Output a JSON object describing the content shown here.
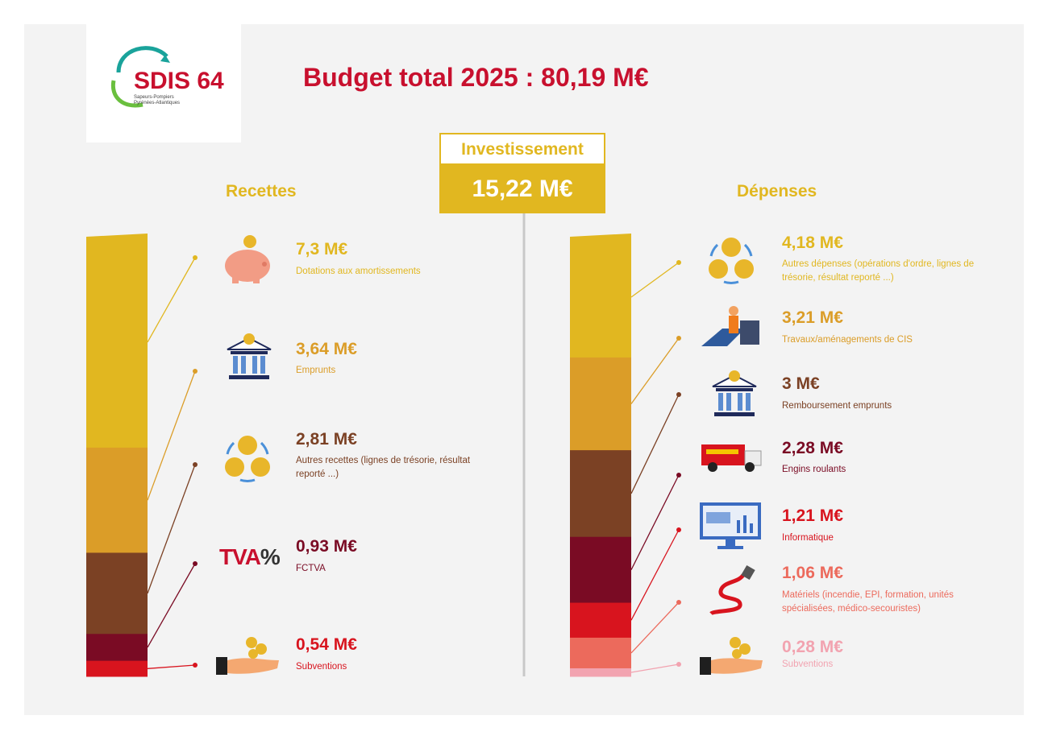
{
  "logo": {
    "text": "SDIS 64",
    "tagline_1": "Sapeurs-Pompiers",
    "tagline_2": "Pyrénées-Atlantiques"
  },
  "title": "Budget total 2025 : 80,19 M€",
  "section": {
    "label": "Investissement",
    "value": "15,22 M€"
  },
  "chart_data": [
    {
      "type": "bar",
      "stacked": true,
      "title": "Recettes",
      "unit": "M€",
      "categories": [
        "Dotations aux amortissements",
        "Emprunts",
        "Autres recettes (lignes de trésorie, résultat reporté ...)",
        "FCTVA",
        "Subventions"
      ],
      "values": [
        7.3,
        3.64,
        2.81,
        0.93,
        0.54
      ],
      "value_labels": [
        "7,3 M€",
        "3,64 M€",
        "2,81 M€",
        "0,93 M€",
        "0,54 M€"
      ],
      "colors": [
        "#e1b720",
        "#db9d28",
        "#7b4124",
        "#7a0b24",
        "#d8141e"
      ],
      "icons": [
        "piggy-bank-icon",
        "bank-icon",
        "coins-cycle-icon",
        "tva-icon",
        "hand-coins-icon"
      ]
    },
    {
      "type": "bar",
      "stacked": true,
      "title": "Dépenses",
      "unit": "M€",
      "categories": [
        "Autres dépenses (opérations d'ordre, lignes de trésorie, résultat reporté ...)",
        "Travaux/aménagements de CIS",
        "Remboursement emprunts",
        "Engins roulants",
        "Informatique",
        "Matériels (incendie, EPI, formation, unités spécialisées, médico-secouristes)",
        "Subventions"
      ],
      "values": [
        4.18,
        3.21,
        3.0,
        2.28,
        1.21,
        1.06,
        0.28
      ],
      "value_labels": [
        "4,18 M€",
        "3,21 M€",
        "3 M€",
        "2,28 M€",
        "1,21 M€",
        "1,06 M€",
        "0,28 M€"
      ],
      "colors": [
        "#e1b720",
        "#db9d28",
        "#7b4124",
        "#7a0b24",
        "#d8141e",
        "#ec6a5c",
        "#f2a3b0"
      ],
      "icons": [
        "coins-cycle-icon",
        "construction-worker-icon",
        "bank-icon",
        "fire-truck-icon",
        "computer-monitor-icon",
        "fire-hose-icon",
        "hand-coins-icon"
      ]
    }
  ]
}
